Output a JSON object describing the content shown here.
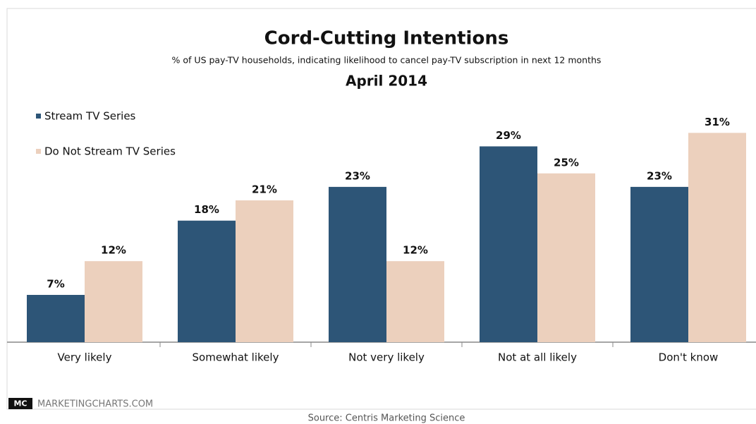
{
  "chart_data": {
    "type": "bar",
    "title": "Cord-Cutting Intentions",
    "subtitle": "% of US pay-TV households, indicating likelihood to cancel pay-TV subscription in next 12 months",
    "date_label": "April 2014",
    "categories": [
      "Very likely",
      "Somewhat likely",
      "Not very likely",
      "Not at all likely",
      "Don't know"
    ],
    "series": [
      {
        "name": "Stream TV Series",
        "color": "#2d5577",
        "values": [
          7,
          18,
          23,
          29,
          23
        ],
        "value_labels": [
          "7%",
          "18%",
          "23%",
          "29%",
          "23%"
        ]
      },
      {
        "name": "Do Not Stream TV Series",
        "color": "#ecd0bd",
        "values": [
          12,
          21,
          12,
          25,
          31
        ],
        "value_labels": [
          "12%",
          "21%",
          "12%",
          "25%",
          "31%"
        ]
      }
    ],
    "legend": "top-left",
    "logo": "MC",
    "brand": "MARKETINGCHARTS.COM",
    "source": "Source: Centris Marketing Science"
  }
}
